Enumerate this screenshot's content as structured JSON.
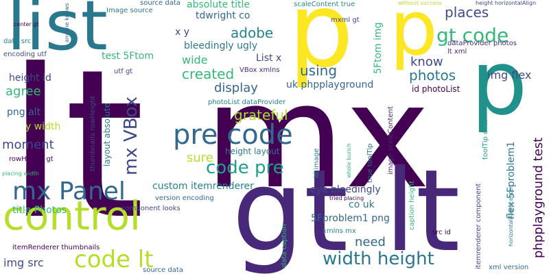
{
  "words": [
    {
      "text": "lt",
      "color": "#440154",
      "size": 300,
      "vertical": false
    },
    {
      "text": "mx",
      "color": "#440154",
      "size": 210,
      "vertical": false
    },
    {
      "text": "gt lt",
      "color": "#482878",
      "size": 165,
      "vertical": false
    },
    {
      "text": "p",
      "color": "#fde725",
      "size": 150,
      "vertical": false
    },
    {
      "text": "p",
      "color": "#fde725",
      "size": 110,
      "vertical": false
    },
    {
      "text": "p",
      "color": "#21918c",
      "size": 130,
      "vertical": false
    },
    {
      "text": "list",
      "color": "#2a788e",
      "size": 100,
      "vertical": false
    },
    {
      "text": "control",
      "color": "#b5de2b",
      "size": 58,
      "vertical": false
    },
    {
      "text": "pre code",
      "color": "#31688e",
      "size": 40,
      "vertical": false
    },
    {
      "text": "mx Panel",
      "color": "#31688e",
      "size": 36,
      "vertical": false
    },
    {
      "text": "code lt",
      "color": "#b5de2b",
      "size": 34,
      "vertical": false
    },
    {
      "text": "width height",
      "color": "#2a788e",
      "size": 26,
      "vertical": false
    },
    {
      "text": "gt code",
      "color": "#35b779",
      "size": 28,
      "vertical": false
    },
    {
      "text": "code pre",
      "color": "#1f9e89",
      "size": 26,
      "vertical": false
    },
    {
      "text": "mx VBox",
      "color": "#3e4989",
      "size": 26,
      "vertical": true
    },
    {
      "text": "phpplayground test",
      "color": "#440154",
      "size": 18,
      "vertical": true
    },
    {
      "text": "using",
      "color": "#31688e",
      "size": 20,
      "vertical": false
    },
    {
      "text": "photos",
      "color": "#2a788e",
      "size": 20,
      "vertical": false
    },
    {
      "text": "places",
      "color": "#3e4989",
      "size": 20,
      "vertical": false
    },
    {
      "text": "adobe",
      "color": "#26828e",
      "size": 20,
      "vertical": false
    },
    {
      "text": "grateful",
      "color": "#addc30",
      "size": 20,
      "vertical": false
    },
    {
      "text": "created",
      "color": "#35b779",
      "size": 20,
      "vertical": false
    },
    {
      "text": "moment",
      "color": "#3e4989",
      "size": 18,
      "vertical": false
    },
    {
      "text": "need",
      "color": "#31688e",
      "size": 18,
      "vertical": false
    },
    {
      "text": "sure",
      "color": "#b5de2b",
      "size": 18,
      "vertical": false
    },
    {
      "text": "display",
      "color": "#31688e",
      "size": 18,
      "vertical": false
    },
    {
      "text": "agree",
      "color": "#35b779",
      "size": 18,
      "vertical": false
    },
    {
      "text": "know",
      "color": "#3e4989",
      "size": 18,
      "vertical": false
    },
    {
      "text": "wide",
      "color": "#35b779",
      "size": 16,
      "vertical": false
    },
    {
      "text": "img flex",
      "color": "#3e4989",
      "size": 16,
      "vertical": false
    },
    {
      "text": "img src",
      "color": "#3e4989",
      "size": 16,
      "vertical": false
    },
    {
      "text": "eye bleedingly",
      "color": "#3e4989",
      "size": 14,
      "vertical": false
    },
    {
      "text": "5Fproblem1 png",
      "color": "#31688e",
      "size": 14,
      "vertical": false
    },
    {
      "text": "flex 5Fproblem1",
      "color": "#2a788e",
      "size": 14,
      "vertical": true
    },
    {
      "text": "uk phpplayground",
      "color": "#31688e",
      "size": 14,
      "vertical": false
    },
    {
      "text": "custom itemrenderer",
      "color": "#26828e",
      "size": 14,
      "vertical": false
    },
    {
      "text": "bleedingly ugly",
      "color": "#2a788e",
      "size": 14,
      "vertical": false
    },
    {
      "text": "tdwright co",
      "color": "#31688e",
      "size": 14,
      "vertical": false
    },
    {
      "text": "absolute title",
      "color": "#35b779",
      "size": 14,
      "vertical": false
    },
    {
      "text": "test 5Ftom",
      "color": "#35b779",
      "size": 14,
      "vertical": false
    },
    {
      "text": "5Ftom img",
      "color": "#35b779",
      "size": 14,
      "vertical": true
    },
    {
      "text": "height id",
      "color": "#3e4989",
      "size": 14,
      "vertical": false
    },
    {
      "text": "png alt",
      "color": "#31688e",
      "size": 14,
      "vertical": false
    },
    {
      "text": "y width",
      "color": "#b5de2b",
      "size": 14,
      "vertical": false
    },
    {
      "text": "x y",
      "color": "#3e4989",
      "size": 14,
      "vertical": false
    },
    {
      "text": "List x",
      "color": "#3e4989",
      "size": 14,
      "vertical": false
    },
    {
      "text": "co uk",
      "color": "#2a788e",
      "size": 14,
      "vertical": false
    },
    {
      "text": "title Photos",
      "color": "#35b779",
      "size": 14,
      "vertical": false
    },
    {
      "text": "id photoList",
      "color": "#440154",
      "size": 12,
      "vertical": false
    },
    {
      "text": "height layout",
      "color": "#2a788e",
      "size": 12,
      "vertical": false
    },
    {
      "text": "layout absolute",
      "color": "#2a788e",
      "size": 12,
      "vertical": true
    },
    {
      "text": "thumbnails rowHeight",
      "color": "#3e4989",
      "size": 10,
      "vertical": true
    },
    {
      "text": "itemRenderer thumbnails",
      "color": "#440154",
      "size": 10,
      "vertical": false
    },
    {
      "text": "component looks",
      "color": "#3e4989",
      "size": 10,
      "vertical": false
    },
    {
      "text": "version encoding",
      "color": "#31688e",
      "size": 10,
      "vertical": false
    },
    {
      "text": "VBox xmlns",
      "color": "#482878",
      "size": 10,
      "vertical": false
    },
    {
      "text": "photoList dataProvider",
      "color": "#26828e",
      "size": 10,
      "vertical": false
    },
    {
      "text": "dataProvider photos",
      "color": "#482878",
      "size": 10,
      "vertical": false
    },
    {
      "text": "lt xml",
      "color": "#482878",
      "size": 10,
      "vertical": false
    },
    {
      "text": "utf gt",
      "color": "#3e4989",
      "size": 10,
      "vertical": false
    },
    {
      "text": "encoding utf",
      "color": "#3e4989",
      "size": 10,
      "vertical": false
    },
    {
      "text": "data src",
      "color": "#26828e",
      "size": 10,
      "vertical": false
    },
    {
      "text": "source data",
      "color": "#31688e",
      "size": 10,
      "vertical": false
    },
    {
      "text": "Image source",
      "color": "#2a788e",
      "size": 10,
      "vertical": false
    },
    {
      "text": "scaleContent true",
      "color": "#26828e",
      "size": 10,
      "vertical": false
    },
    {
      "text": "mxml gt",
      "color": "#3e4989",
      "size": 10,
      "vertical": false
    },
    {
      "text": "anyone knows",
      "color": "#31688e",
      "size": 8,
      "vertical": true
    },
    {
      "text": "center gt",
      "color": "#440154",
      "size": 8,
      "vertical": false
    },
    {
      "text": "without success",
      "color": "#b5de2b",
      "size": 8,
      "vertical": false
    },
    {
      "text": "height horizontalAlign",
      "color": "#3e4989",
      "size": 8,
      "vertical": false
    },
    {
      "text": "rowHeight gt",
      "color": "#440154",
      "size": 10,
      "vertical": false
    },
    {
      "text": "placing width",
      "color": "#35b779",
      "size": 8,
      "vertical": false
    },
    {
      "text": "source data",
      "color": "#31688e",
      "size": 10,
      "vertical": false
    },
    {
      "text": "tried placing",
      "color": "#440154",
      "size": 8,
      "vertical": false
    },
    {
      "text": "xmlns mx",
      "color": "#26828e",
      "size": 10,
      "vertical": false
    },
    {
      "text": "data caption",
      "color": "#35b779",
      "size": 10,
      "vertical": true
    },
    {
      "text": "id image",
      "color": "#26828e",
      "size": 10,
      "vertical": true
    },
    {
      "text": "whole bunch",
      "color": "#35b779",
      "size": 8,
      "vertical": true
    },
    {
      "text": "true toolTip",
      "color": "#31688e",
      "size": 10,
      "vertical": true
    },
    {
      "text": "image scaleContent",
      "color": "#482878",
      "size": 10,
      "vertical": true
    },
    {
      "text": "caption height",
      "color": "#35b779",
      "size": 10,
      "vertical": true
    },
    {
      "text": "toolTip data",
      "color": "#1f9e89",
      "size": 10,
      "vertical": true
    },
    {
      "text": "src id",
      "color": "#440154",
      "size": 10,
      "vertical": false
    },
    {
      "text": "itemrenderer component",
      "color": "#3e4989",
      "size": 10,
      "vertical": true
    },
    {
      "text": "horizontalAlign center",
      "color": "#2a788e",
      "size": 8,
      "vertical": true
    },
    {
      "text": "xml version",
      "color": "#31688e",
      "size": 10,
      "vertical": false
    }
  ]
}
